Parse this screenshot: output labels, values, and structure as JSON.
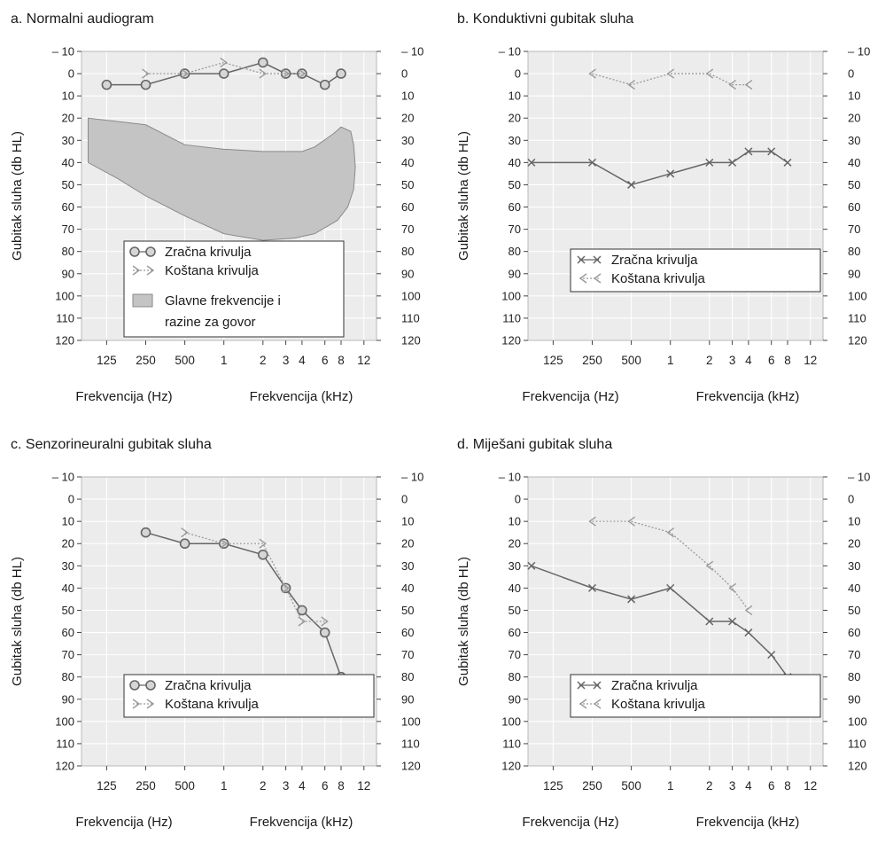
{
  "chart_data": [
    {
      "panel_id": "a",
      "type": "line",
      "title": "a. Normalni audiogram",
      "ylabel": "Gubitak sluha (db HL)",
      "xlabel_left": "Frekvencija (Hz)",
      "xlabel_right": "Frekvencija (kHz)",
      "x_ticks": [
        "125",
        "250",
        "500",
        "1",
        "2",
        "3",
        "4",
        "6",
        "8",
        "12"
      ],
      "y_ticks": [
        "– 10",
        "0",
        "10",
        "20",
        "30",
        "40",
        "50",
        "60",
        "70",
        "80",
        "90",
        "100",
        "110",
        "120"
      ],
      "ylim": [
        -10,
        120
      ],
      "y_inverted": true,
      "x_scale": "log",
      "grid": true,
      "series": [
        {
          "name": "Zračna krivulja",
          "style": "circle",
          "x": [
            125,
            250,
            500,
            1000,
            2000,
            3000,
            4000,
            6000,
            8000
          ],
          "y": [
            5,
            5,
            0,
            0,
            -5,
            0,
            0,
            5,
            0
          ]
        },
        {
          "name": "Koštana krivulja",
          "style": "bone-right",
          "x": [
            250,
            500,
            1000,
            2000,
            3000,
            4000
          ],
          "y": [
            0,
            0,
            -5,
            0,
            0,
            0
          ]
        }
      ],
      "region": {
        "name": "Glavne frekvencije i razine za govor",
        "color": "#c4c4c4",
        "x": [
          90,
          250,
          500,
          1000,
          2000,
          3000,
          4000,
          5000,
          7000,
          8000,
          9500,
          10000,
          10300,
          10000,
          9000,
          7500,
          5000,
          3500,
          2000,
          1000,
          500,
          250,
          150,
          90
        ],
        "y": [
          20,
          23,
          32,
          34,
          35,
          35,
          35,
          33,
          27,
          24,
          26,
          32,
          42,
          52,
          60,
          66,
          72,
          74,
          75,
          72,
          64,
          55,
          47,
          40
        ]
      },
      "legend": {
        "entries": [
          "Zračna krivulja",
          "Koštana krivulja",
          "Glavne frekvencije i",
          "razine za govor"
        ],
        "placement": "bottom-center"
      }
    },
    {
      "panel_id": "b",
      "type": "line",
      "title": "b. Konduktivni gubitak sluha",
      "ylabel": "Gubitak sluha (db HL)",
      "xlabel_left": "Frekvencija (Hz)",
      "xlabel_right": "Frekvencija (kHz)",
      "x_ticks": [
        "125",
        "250",
        "500",
        "1",
        "2",
        "3",
        "4",
        "6",
        "8",
        "12"
      ],
      "y_ticks": [
        "– 10",
        "0",
        "10",
        "20",
        "30",
        "40",
        "50",
        "60",
        "70",
        "80",
        "90",
        "100",
        "110",
        "120"
      ],
      "y_right_ticks": [
        "– 10",
        "0",
        "10",
        "20",
        "30",
        "40",
        "50",
        "60",
        "70",
        "80",
        "90",
        "100",
        "110",
        "120"
      ],
      "ylim": [
        -10,
        120
      ],
      "y_inverted": true,
      "x_scale": "log",
      "grid": true,
      "series": [
        {
          "name": "Zračna krivulja",
          "style": "cross",
          "x": [
            85,
            250,
            500,
            1000,
            2000,
            3000,
            4000,
            6000,
            8000
          ],
          "y": [
            40,
            40,
            50,
            45,
            40,
            40,
            35,
            35,
            40
          ]
        },
        {
          "name": "Koštana krivulja",
          "style": "bone-left",
          "x": [
            250,
            500,
            1000,
            2000,
            3000,
            4000
          ],
          "y": [
            0,
            5,
            0,
            0,
            5,
            5
          ]
        }
      ],
      "legend": {
        "entries": [
          "Zračna krivulja",
          "Koštana krivulja"
        ],
        "placement": "bottom-center"
      }
    },
    {
      "panel_id": "c",
      "type": "line",
      "title": "c. Senzorineuralni gubitak sluha",
      "ylabel": "Gubitak sluha (db HL)",
      "xlabel_left": "Frekvencija (Hz)",
      "xlabel_right": "Frekvencija (kHz)",
      "x_ticks": [
        "125",
        "250",
        "500",
        "1",
        "2",
        "3",
        "4",
        "6",
        "8",
        "12"
      ],
      "y_ticks": [
        "– 10",
        "0",
        "10",
        "20",
        "30",
        "40",
        "50",
        "60",
        "70",
        "80",
        "90",
        "100",
        "110",
        "120"
      ],
      "ylim": [
        -10,
        120
      ],
      "y_inverted": true,
      "x_scale": "log",
      "grid": true,
      "series": [
        {
          "name": "Zračna krivulja",
          "style": "circle",
          "x": [
            250,
            500,
            1000,
            2000,
            3000,
            4000,
            6000,
            8000
          ],
          "y": [
            15,
            20,
            20,
            25,
            40,
            50,
            60,
            80
          ]
        },
        {
          "name": "Koštana krivulja",
          "style": "bone-right",
          "x": [
            500,
            1000,
            2000,
            3000,
            4000,
            6000
          ],
          "y": [
            15,
            20,
            20,
            40,
            55,
            55
          ]
        }
      ],
      "legend": {
        "entries": [
          "Zračna krivulja",
          "Koštana krivulja"
        ],
        "placement": "bottom-center"
      }
    },
    {
      "panel_id": "d",
      "type": "line",
      "title": "d. Miješani gubitak sluha",
      "ylabel": "Gubitak sluha (db HL)",
      "xlabel_left": "Frekvencija (Hz)",
      "xlabel_right": "Frekvencija (kHz)",
      "x_ticks": [
        "125",
        "250",
        "500",
        "1",
        "2",
        "3",
        "4",
        "6",
        "8",
        "12"
      ],
      "y_ticks": [
        "– 10",
        "0",
        "10",
        "20",
        "30",
        "40",
        "50",
        "60",
        "70",
        "80",
        "90",
        "100",
        "110",
        "120"
      ],
      "y_right_ticks": [
        "– 10",
        "0",
        "10",
        "20",
        "30",
        "40",
        "50",
        "60",
        "70",
        "80",
        "90",
        "100",
        "110",
        "120"
      ],
      "ylim": [
        -10,
        120
      ],
      "y_inverted": true,
      "x_scale": "log",
      "grid": true,
      "series": [
        {
          "name": "Zračna krivulja",
          "style": "cross",
          "x": [
            85,
            250,
            500,
            1000,
            2000,
            3000,
            4000,
            6000,
            8000
          ],
          "y": [
            30,
            40,
            45,
            40,
            55,
            55,
            60,
            70,
            80
          ]
        },
        {
          "name": "Koštana krivulja",
          "style": "bone-left",
          "x": [
            250,
            500,
            1000,
            2000,
            3000,
            4000
          ],
          "y": [
            10,
            10,
            15,
            30,
            40,
            50
          ]
        }
      ],
      "legend": {
        "entries": [
          "Zračna krivulja",
          "Koštana krivulja"
        ],
        "placement": "bottom-center"
      }
    }
  ]
}
